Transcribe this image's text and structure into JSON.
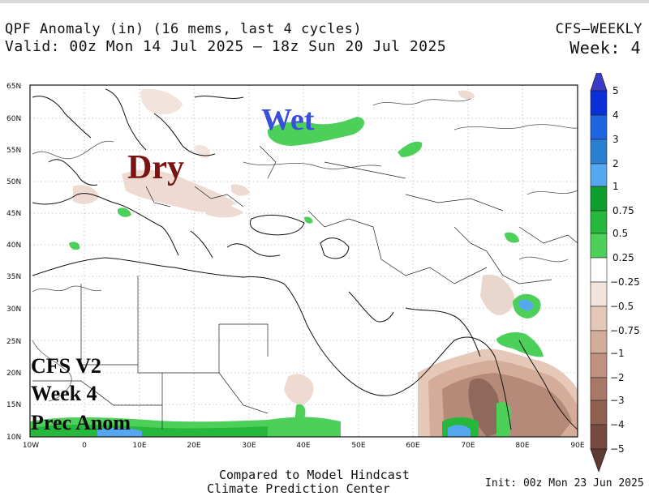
{
  "header": {
    "title_line1": "QPF Anomaly (in) (16 mems, last 4 cycles)",
    "title_line2": "Valid: 00z Mon 14 Jul 2025 — 18z Sun 20 Jul 2025",
    "model": "CFS—WEEKLY",
    "week": "Week: 4"
  },
  "axes": {
    "lat_labels": [
      "65N",
      "60N",
      "55N",
      "50N",
      "45N",
      "40N",
      "35N",
      "30N",
      "25N",
      "20N",
      "15N",
      "10N"
    ],
    "lon_labels": [
      "10W",
      "0",
      "10E",
      "20E",
      "30E",
      "40E",
      "50E",
      "60E",
      "70E",
      "80E",
      "90E"
    ]
  },
  "map_text": {
    "wet": "Wet",
    "dry": "Dry",
    "cfs_line1": "CFS V2",
    "cfs_line2": "Week 4",
    "cfs_line3": "Prec Anom"
  },
  "colorbar": {
    "labels": [
      "5",
      "4",
      "3",
      "2",
      "1",
      "0.75",
      "0.5",
      "0.25",
      "−0.25",
      "−0.5",
      "−0.75",
      "−1",
      "−2",
      "−3",
      "−4",
      "−5"
    ],
    "colors": {
      "top_arrow": "#3a3ac8",
      "wet": [
        "#0b2fd6",
        "#1f63e0",
        "#2b7fd2",
        "#55a8f0",
        "#0e9e2e",
        "#26b83c",
        "#4cd05a"
      ],
      "neutral": "#ffffff",
      "dry": [
        "#f2e4dc",
        "#e5c8b8",
        "#d4ad9a",
        "#c09080",
        "#a97868",
        "#8f5f50",
        "#764a3e"
      ],
      "bottom_arrow": "#5e3a30"
    }
  },
  "footer": {
    "compared": "Compared to Model Hindcast",
    "cut_line": "Climate Prediction Center",
    "init": "Init: 00z Mon 23 Jun 2025"
  }
}
